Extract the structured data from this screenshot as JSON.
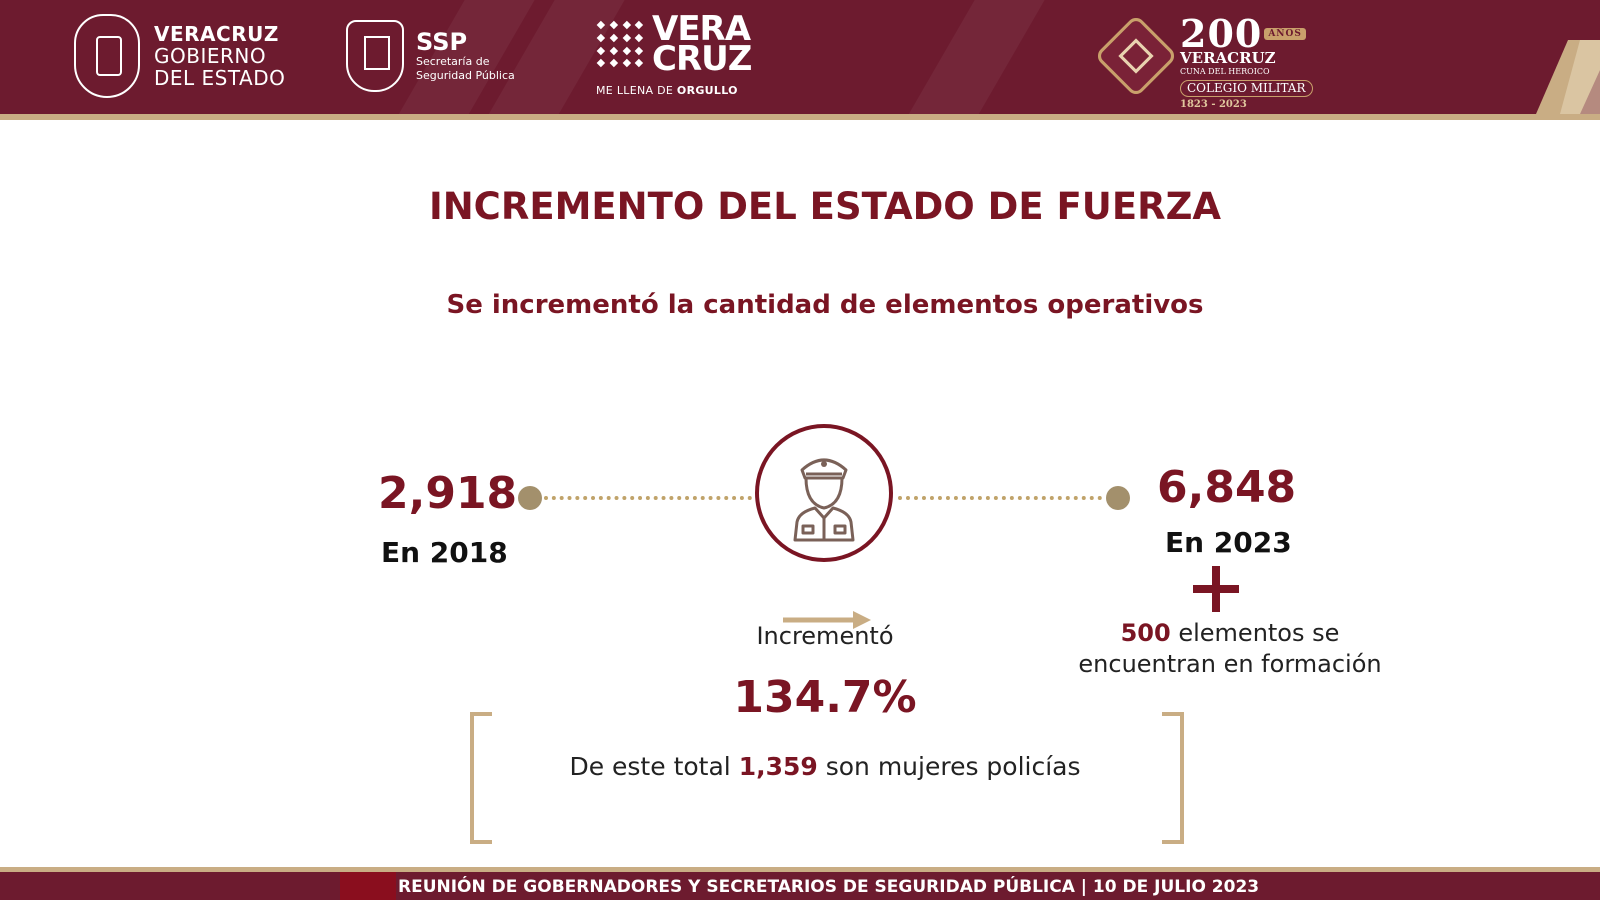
{
  "header": {
    "gobierno_line1": "VERACRUZ",
    "gobierno_line2": "GOBIERNO",
    "gobierno_line3": "DEL ESTADO",
    "ssp_acronym": "SSP",
    "ssp_line1": "Secretaría de",
    "ssp_line2": "Seguridad Pública",
    "veracruz_line1": "VERA",
    "veracruz_line2": "CRUZ",
    "veracruz_tag_regular": "ME LLENA DE",
    "veracruz_tag_bold": "ORGULLO",
    "anniv_number": "200",
    "anniv_anos": "AÑOS",
    "anniv_state": "VERACRUZ",
    "anniv_cuna": "CUNA DEL HEROICO",
    "anniv_colegio": "COLEGIO MILITAR",
    "anniv_years": "1823 - 2023"
  },
  "main": {
    "title": "INCREMENTO DEL ESTADO DE FUERZA",
    "subtitle": "Se incrementó la cantidad de elementos operativos",
    "start_value": "2,918",
    "start_label": "En 2018",
    "end_value": "6,848",
    "end_label": "En 2023",
    "increase_label": "Incrementó",
    "increase_pct": "134.7%",
    "training_count": "500",
    "training_text_1": "elementos  se",
    "training_text_2": "encuentran en formación",
    "women_prefix": "De este total",
    "women_count": "1,359",
    "women_suffix": "son mujeres policías"
  },
  "footer": {
    "text": "REUNIÓN DE GOBERNADORES Y SECRETARIOS DE SEGURIDAD PÚBLICA | 10 DE JULIO 2023"
  },
  "colors": {
    "brand_maroon": "#6d1b2f",
    "accent_red": "#7a1523",
    "gold": "#c9ad84"
  },
  "icons": [
    "veracruz-coat-of-arms-icon",
    "ssp-shield-icon",
    "veracruz-pattern-icon",
    "anniversary-emblem-icon",
    "police-officer-icon",
    "arrow-right-icon",
    "plus-icon"
  ]
}
